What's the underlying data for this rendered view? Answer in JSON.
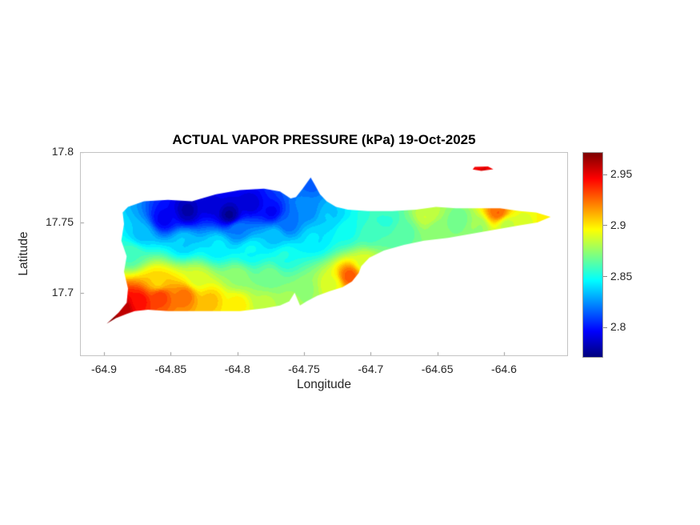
{
  "colors": {
    "background": "#ffffff",
    "title_text": "#000000",
    "axis_text": "#262626",
    "axis_line": "#c3c3c3"
  },
  "chart_data": {
    "type": "heatmap",
    "subtype": "filled-contour-map",
    "title": "ACTUAL VAPOR PRESSURE (kPa) 19-Oct-2025",
    "xlabel": "Longitude",
    "ylabel": "Latitude",
    "xlim": [
      -64.918,
      -64.552
    ],
    "ylim": [
      17.655,
      17.8
    ],
    "xticks": [
      -64.9,
      -64.85,
      -64.8,
      -64.75,
      -64.7,
      -64.65,
      -64.6
    ],
    "xtick_labels": [
      "-64.9",
      "-64.85",
      "-64.8",
      "-64.75",
      "-64.7",
      "-64.65",
      "-64.6"
    ],
    "yticks": [
      17.7,
      17.75,
      17.8
    ],
    "ytick_labels": [
      "17.7",
      "17.75",
      "17.8"
    ],
    "grid": false,
    "colormap": "jet",
    "contour_interval": 0.005,
    "colorbar": {
      "position": "right",
      "vmin": 2.772,
      "vmax": 2.972,
      "ticks": [
        2.8,
        2.85,
        2.9,
        2.95
      ],
      "tick_labels": [
        "2.8",
        "2.85",
        "2.9",
        "2.95"
      ]
    },
    "island_outline": [
      [
        -64.898,
        17.678
      ],
      [
        -64.889,
        17.686
      ],
      [
        -64.883,
        17.693
      ],
      [
        -64.882,
        17.703
      ],
      [
        -64.885,
        17.715
      ],
      [
        -64.883,
        17.726
      ],
      [
        -64.887,
        17.737
      ],
      [
        -64.885,
        17.749
      ],
      [
        -64.886,
        17.757
      ],
      [
        -64.882,
        17.761
      ],
      [
        -64.87,
        17.765
      ],
      [
        -64.852,
        17.766
      ],
      [
        -64.834,
        17.765
      ],
      [
        -64.816,
        17.77
      ],
      [
        -64.798,
        17.773
      ],
      [
        -64.78,
        17.774
      ],
      [
        -64.768,
        17.772
      ],
      [
        -64.76,
        17.767
      ],
      [
        -64.756,
        17.768
      ],
      [
        -64.751,
        17.774
      ],
      [
        -64.745,
        17.782
      ],
      [
        -64.742,
        17.777
      ],
      [
        -64.738,
        17.77
      ],
      [
        -64.733,
        17.765
      ],
      [
        -64.726,
        17.761
      ],
      [
        -64.717,
        17.759
      ],
      [
        -64.702,
        17.758
      ],
      [
        -64.684,
        17.758
      ],
      [
        -64.666,
        17.759
      ],
      [
        -64.651,
        17.761
      ],
      [
        -64.636,
        17.76
      ],
      [
        -64.618,
        17.76
      ],
      [
        -64.603,
        17.76
      ],
      [
        -64.588,
        17.758
      ],
      [
        -64.576,
        17.757
      ],
      [
        -64.565,
        17.754
      ],
      [
        -64.575,
        17.75
      ],
      [
        -64.588,
        17.748
      ],
      [
        -64.606,
        17.745
      ],
      [
        -64.624,
        17.742
      ],
      [
        -64.642,
        17.739
      ],
      [
        -64.66,
        17.737
      ],
      [
        -64.675,
        17.734
      ],
      [
        -64.69,
        17.73
      ],
      [
        -64.701,
        17.725
      ],
      [
        -64.707,
        17.719
      ],
      [
        -64.709,
        17.714
      ],
      [
        -64.714,
        17.708
      ],
      [
        -64.721,
        17.704
      ],
      [
        -64.731,
        17.701
      ],
      [
        -64.74,
        17.698
      ],
      [
        -64.748,
        17.694
      ],
      [
        -64.753,
        17.691
      ],
      [
        -64.757,
        17.7
      ],
      [
        -64.761,
        17.694
      ],
      [
        -64.768,
        17.691
      ],
      [
        -64.78,
        17.689
      ],
      [
        -64.798,
        17.687
      ],
      [
        -64.816,
        17.687
      ],
      [
        -64.834,
        17.687
      ],
      [
        -64.852,
        17.687
      ],
      [
        -64.867,
        17.688
      ],
      [
        -64.877,
        17.687
      ],
      [
        -64.883,
        17.685
      ],
      [
        -64.891,
        17.682
      ]
    ],
    "islets": [
      [
        [
          -64.622,
          17.7895
        ],
        [
          -64.612,
          17.7898
        ],
        [
          -64.608,
          17.7878
        ],
        [
          -64.617,
          17.7866
        ],
        [
          -64.6235,
          17.7876
        ]
      ]
    ],
    "field_points": [
      [
        -64.897,
        17.68,
        2.97
      ],
      [
        -64.886,
        17.69,
        2.96
      ],
      [
        -64.874,
        17.694,
        2.945
      ],
      [
        -64.858,
        17.697,
        2.935
      ],
      [
        -64.84,
        17.698,
        2.925
      ],
      [
        -64.82,
        17.695,
        2.91
      ],
      [
        -64.8,
        17.692,
        2.9
      ],
      [
        -64.78,
        17.692,
        2.885
      ],
      [
        -64.76,
        17.694,
        2.88
      ],
      [
        -64.86,
        17.708,
        2.905
      ],
      [
        -64.83,
        17.71,
        2.89
      ],
      [
        -64.8,
        17.712,
        2.875
      ],
      [
        -64.775,
        17.712,
        2.87
      ],
      [
        -64.88,
        17.728,
        2.86
      ],
      [
        -64.872,
        17.742,
        2.835
      ],
      [
        -64.855,
        17.753,
        2.795
      ],
      [
        -64.838,
        17.758,
        2.78
      ],
      [
        -64.82,
        17.763,
        2.79
      ],
      [
        -64.806,
        17.756,
        2.776
      ],
      [
        -64.79,
        17.764,
        2.788
      ],
      [
        -64.775,
        17.758,
        2.796
      ],
      [
        -64.762,
        17.749,
        2.818
      ],
      [
        -64.745,
        17.778,
        2.815
      ],
      [
        -64.748,
        17.76,
        2.822
      ],
      [
        -64.84,
        17.736,
        2.838
      ],
      [
        -64.815,
        17.734,
        2.842
      ],
      [
        -64.79,
        17.73,
        2.848
      ],
      [
        -64.765,
        17.726,
        2.852
      ],
      [
        -64.8,
        17.745,
        2.822
      ],
      [
        -64.772,
        17.74,
        2.836
      ],
      [
        -64.742,
        17.738,
        2.842
      ],
      [
        -64.73,
        17.754,
        2.836
      ],
      [
        -64.718,
        17.744,
        2.85
      ],
      [
        -64.748,
        17.702,
        2.876
      ],
      [
        -64.73,
        17.706,
        2.892
      ],
      [
        -64.716,
        17.712,
        2.93
      ],
      [
        -64.704,
        17.722,
        2.888
      ],
      [
        -64.7,
        17.742,
        2.86
      ],
      [
        -64.688,
        17.752,
        2.856
      ],
      [
        -64.675,
        17.744,
        2.866
      ],
      [
        -64.658,
        17.756,
        2.888
      ],
      [
        -64.65,
        17.744,
        2.874
      ],
      [
        -64.634,
        17.752,
        2.868
      ],
      [
        -64.62,
        17.747,
        2.876
      ],
      [
        -64.605,
        17.758,
        2.928
      ],
      [
        -64.598,
        17.748,
        2.884
      ],
      [
        -64.584,
        17.751,
        2.89
      ],
      [
        -64.57,
        17.752,
        2.898
      ],
      [
        -64.561,
        17.753,
        2.896
      ],
      [
        -64.617,
        17.788,
        2.952
      ]
    ]
  }
}
